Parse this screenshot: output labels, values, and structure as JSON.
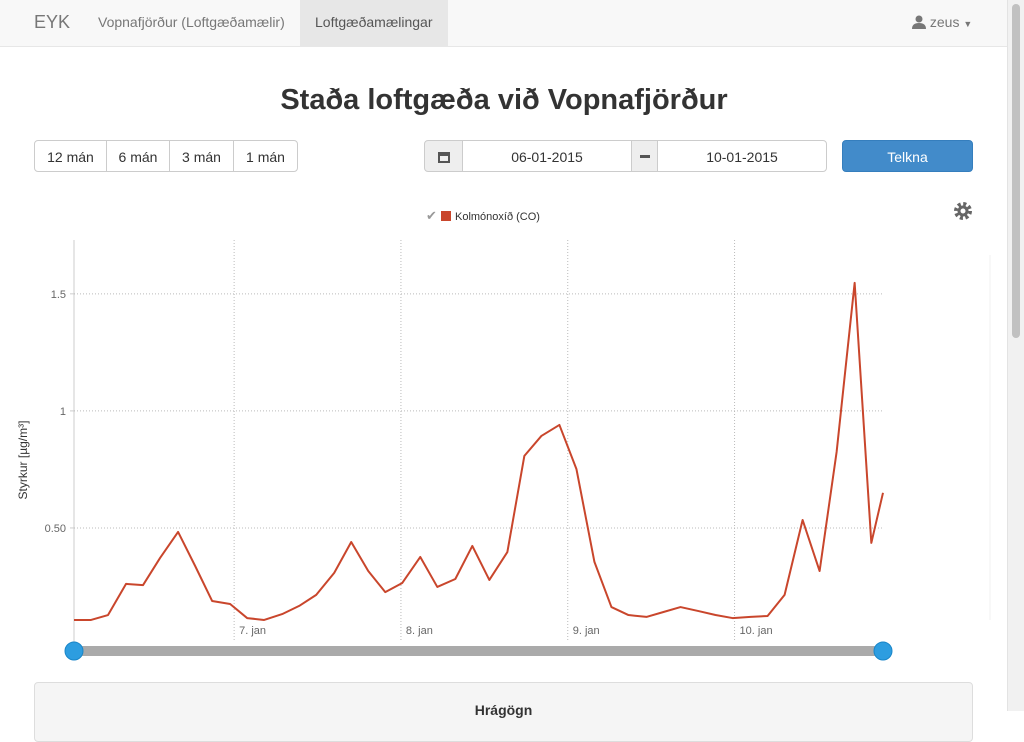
{
  "navbar": {
    "brand": "EYK",
    "links": [
      "Vopnafjörður (Loftgæðamælir)",
      "Loftgæðamælingar"
    ],
    "user": "zeus"
  },
  "title": "Staða loftgæða við Vopnafjörður",
  "range_buttons": [
    "12 mán",
    "6 mán",
    "3 mán",
    "1 mán"
  ],
  "date_from": "06-01-2015",
  "date_to": "10-01-2015",
  "submit": "Telkna",
  "chart_data": {
    "type": "line",
    "y_label": "Styrkur [µg/m³]",
    "x": [
      6.04,
      6.142,
      6.244,
      6.352,
      6.454,
      6.556,
      6.664,
      6.766,
      6.868,
      6.976,
      7.078,
      7.18,
      7.288,
      7.39,
      7.492,
      7.6,
      7.702,
      7.804,
      7.906,
      8.008,
      8.116,
      8.218,
      8.326,
      8.428,
      8.53,
      8.638,
      8.74,
      8.842,
      8.95,
      9.052,
      9.16,
      9.262,
      9.364,
      9.472,
      9.574,
      9.676,
      9.784,
      9.886,
      9.988,
      10.096,
      10.198,
      10.3,
      10.408,
      10.51,
      10.612,
      10.72,
      10.82,
      10.89
    ],
    "series": [
      {
        "name": "Kolmónoxíð (CO)",
        "color": "#c9462c",
        "values": [
          0.107,
          0.107,
          0.128,
          0.261,
          0.256,
          0.372,
          0.483,
          0.338,
          0.188,
          0.175,
          0.115,
          0.107,
          0.132,
          0.167,
          0.214,
          0.308,
          0.44,
          0.316,
          0.226,
          0.265,
          0.376,
          0.248,
          0.282,
          0.423,
          0.278,
          0.397,
          0.808,
          0.893,
          0.94,
          0.752,
          0.355,
          0.162,
          0.128,
          0.12,
          0.141,
          0.162,
          0.145,
          0.128,
          0.115,
          0.12,
          0.124,
          0.214,
          0.534,
          0.316,
          0.825,
          1.547,
          0.436,
          0.65
        ]
      }
    ],
    "xlim": [
      6.04,
      10.89
    ],
    "xticks": [
      {
        "value": 7,
        "label": "7. jan"
      },
      {
        "value": 8,
        "label": "8. jan"
      },
      {
        "value": 9,
        "label": "9. jan"
      },
      {
        "value": 10,
        "label": "10. jan"
      }
    ],
    "ylim": [
      0,
      1.73
    ],
    "yticks": [
      {
        "value": 0.5,
        "label": "0.50"
      },
      1,
      1.5
    ],
    "grid": true
  },
  "panel": {
    "title": "Hrágögn"
  }
}
